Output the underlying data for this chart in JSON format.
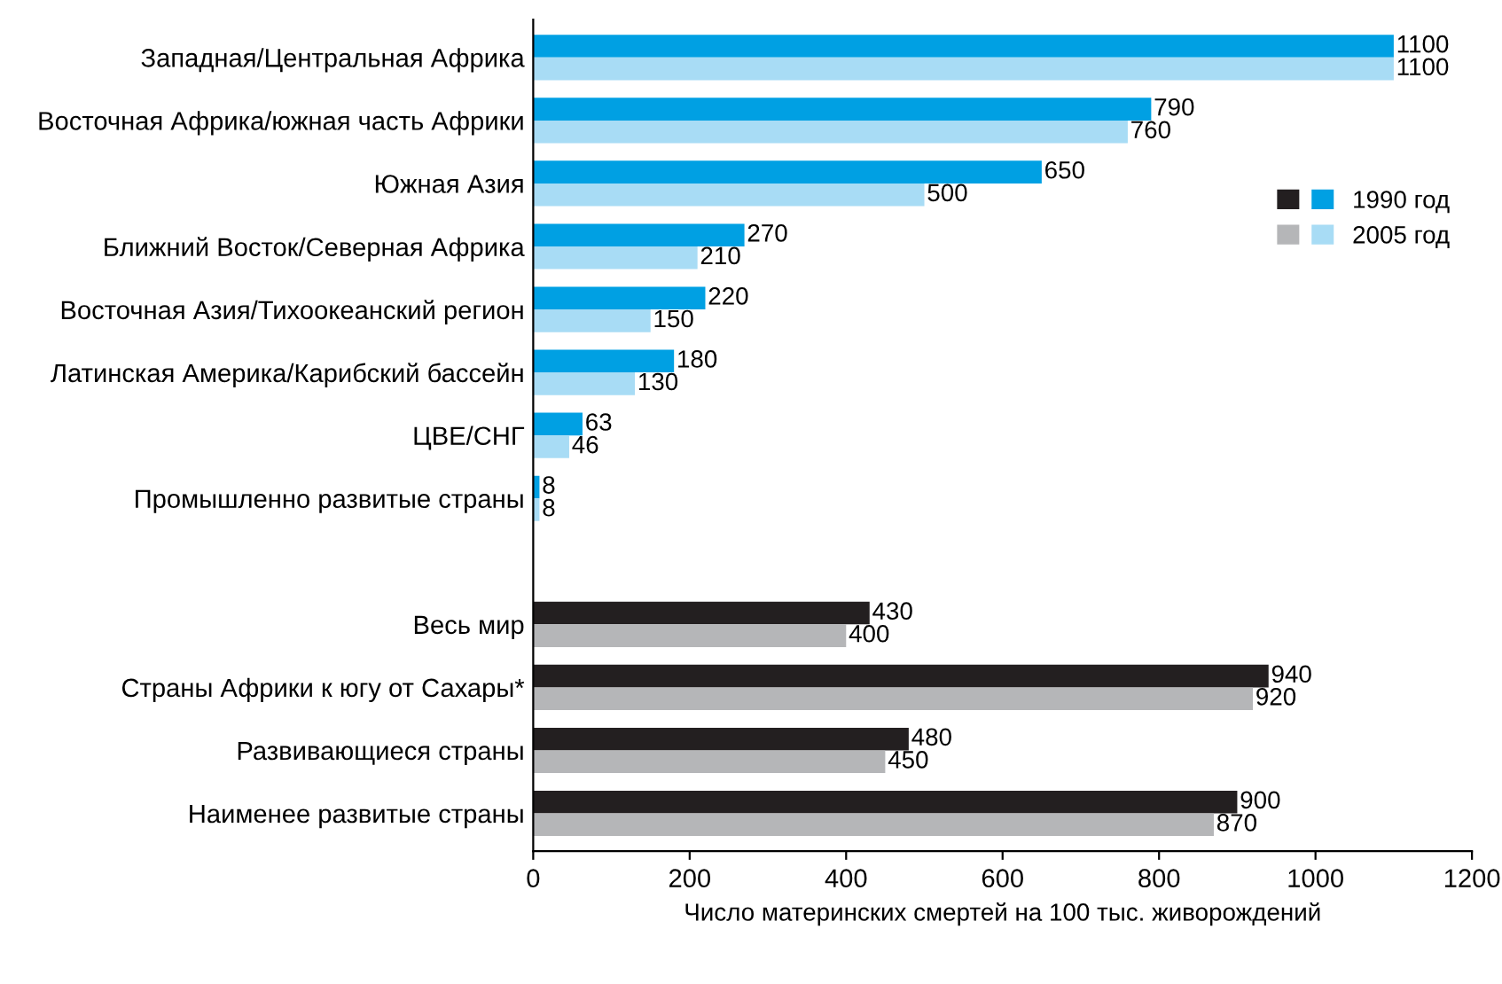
{
  "chart_data": {
    "type": "bar",
    "orientation": "horizontal",
    "categories": [
      "Западная/Центральная Африка",
      "Восточная Африка/южная часть Африки",
      "Южная Азия",
      "Ближний Восток/Северная Африка",
      "Восточная Азия/Тихоокеанский регион",
      "Латинская Америка/Карибский бассейн",
      "ЦВЕ/СНГ",
      "Промышленно развитые страны",
      null,
      "Весь мир",
      "Страны Африки к югу от Сахары*",
      "Развивающиеся страны",
      "Наименее развитые страны"
    ],
    "series": [
      {
        "name": "1990 год",
        "values": [
          1100,
          790,
          650,
          270,
          220,
          180,
          63,
          8,
          null,
          430,
          940,
          480,
          900
        ],
        "colors": [
          "#00a0e3",
          "#00a0e3",
          "#00a0e3",
          "#00a0e3",
          "#00a0e3",
          "#00a0e3",
          "#00a0e3",
          "#00a0e3",
          null,
          "#231f20",
          "#231f20",
          "#231f20",
          "#231f20"
        ]
      },
      {
        "name": "2005 год",
        "values": [
          1100,
          760,
          500,
          210,
          150,
          130,
          46,
          8,
          null,
          400,
          920,
          450,
          870
        ],
        "colors": [
          "#a8dcf5",
          "#a8dcf5",
          "#a8dcf5",
          "#a8dcf5",
          "#a8dcf5",
          "#a8dcf5",
          "#a8dcf5",
          "#a8dcf5",
          null,
          "#b5b6b8",
          "#b5b6b8",
          "#b5b6b8",
          "#b5b6b8"
        ]
      }
    ],
    "xlim": [
      0,
      1200
    ],
    "xticks": [
      0,
      200,
      400,
      600,
      800,
      1000,
      1200
    ],
    "xlabel": "Число материнских смертей на 100 тыс. живорождений",
    "data_labels": true,
    "legend": "right",
    "grid": false
  }
}
